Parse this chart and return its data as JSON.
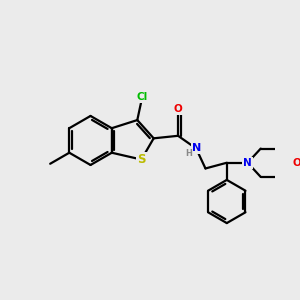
{
  "background_color": "#ebebeb",
  "bond_color": "#000000",
  "atom_colors": {
    "Cl": "#00bb00",
    "S": "#bbbb00",
    "N": "#0000ee",
    "O": "#ee0000",
    "C": "#000000",
    "H": "#888888"
  },
  "figsize": [
    3.0,
    3.0
  ],
  "dpi": 100,
  "lw": 1.6,
  "fs": 7.5
}
